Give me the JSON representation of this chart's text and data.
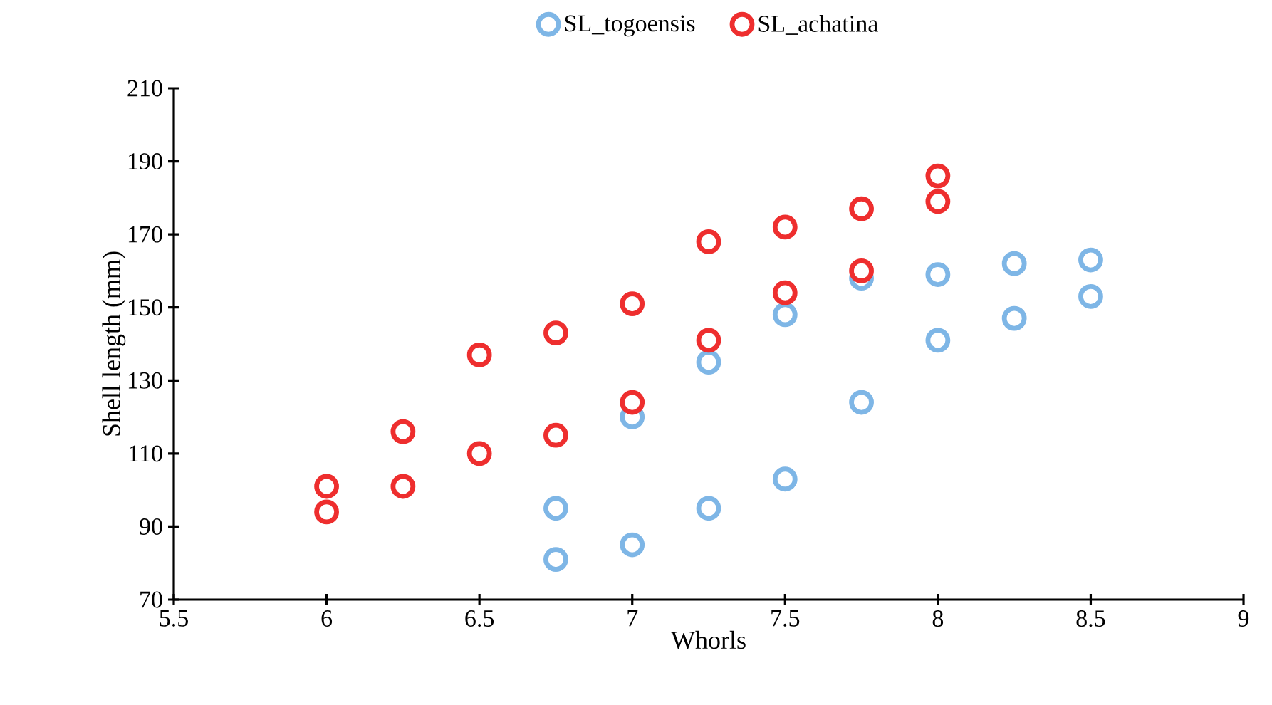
{
  "chart_data": {
    "type": "scatter",
    "xlabel": "Whorls",
    "ylabel": "Shell length (mm)",
    "xlim": [
      5.5,
      9
    ],
    "xticks": [
      5.5,
      6,
      6.5,
      7,
      7.5,
      8,
      8.5,
      9
    ],
    "ylim": [
      70,
      210
    ],
    "yticks": [
      70,
      90,
      110,
      130,
      150,
      170,
      190,
      210
    ],
    "grid": false,
    "legend": "top",
    "marker": "circle",
    "series": [
      {
        "name": "SL_togoensis",
        "color": "#7eb6e6",
        "x": [
          6.75,
          6.75,
          7,
          7,
          7.25,
          7.25,
          7.5,
          7.5,
          7.75,
          7.75,
          8,
          8,
          8.25,
          8.25,
          8.5,
          8.5
        ],
        "values": [
          95,
          81,
          120,
          85,
          135,
          95,
          148,
          103,
          158,
          124,
          159,
          141,
          162,
          147,
          163,
          153
        ]
      },
      {
        "name": "SL_achatina",
        "color": "#ee2e2e",
        "x": [
          6,
          6,
          6.25,
          6.25,
          6.5,
          6.5,
          6.75,
          6.75,
          7,
          7,
          7.25,
          7.25,
          7.5,
          7.5,
          7.75,
          7.75,
          8,
          8
        ],
        "values": [
          101,
          94,
          116,
          101,
          137,
          110,
          143,
          115,
          151,
          124,
          168,
          141,
          172,
          154,
          177,
          160,
          186,
          179
        ]
      }
    ]
  }
}
